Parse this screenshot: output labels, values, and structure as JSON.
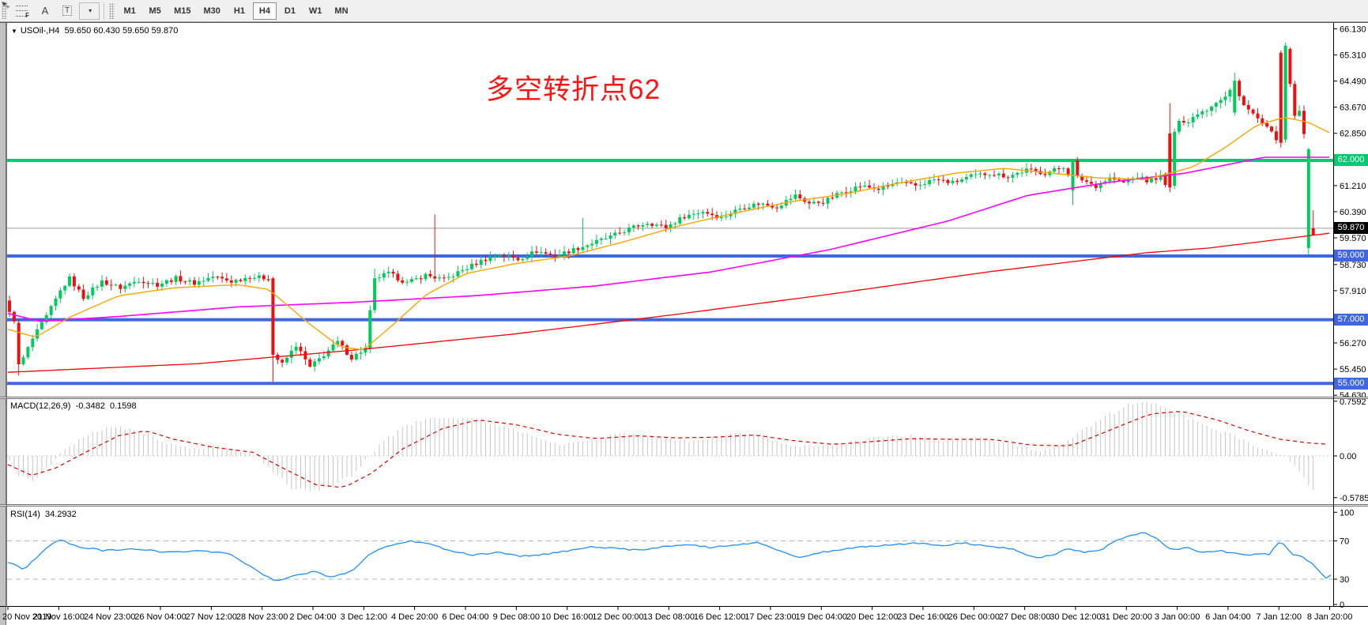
{
  "toolbar": {
    "tools": [
      {
        "name": "fibonacci-tool",
        "glyph": "F"
      },
      {
        "name": "text-tool",
        "glyph": "A"
      },
      {
        "name": "text-label-tool",
        "glyph": "T"
      },
      {
        "name": "arrows-tool",
        "glyph": "▾"
      }
    ],
    "timeframes": [
      "M1",
      "M5",
      "M15",
      "M30",
      "H1",
      "H4",
      "D1",
      "W1",
      "MN"
    ],
    "selected_timeframe": "H4"
  },
  "chart_header": {
    "dropdown_glyph": "▼",
    "symbol": "USOil-,H4",
    "ohlc": "59.650 60.430 59.650 59.870"
  },
  "annotation": {
    "text": "多空转折点62",
    "color": "#FF1414"
  },
  "price_axis": {
    "top_value": 66.29,
    "bottom_value": 54.585,
    "tick_labels": [
      "66.130",
      "65.310",
      "64.490",
      "63.670",
      "62.850",
      "61.210",
      "60.390",
      "59.570",
      "58.730",
      "57.910",
      "56.270",
      "55.450",
      "54.630"
    ],
    "tick_values": [
      66.13,
      65.31,
      64.49,
      63.67,
      62.85,
      61.21,
      60.39,
      59.57,
      58.73,
      57.91,
      56.27,
      55.45,
      54.63
    ],
    "tags": [
      {
        "name": "price-tag-level-62",
        "label": "62.000",
        "value": 62.0,
        "bg": "#00CB72",
        "fg": "#FFFFFF"
      },
      {
        "name": "price-tag-current-bid",
        "label": "59.870",
        "value": 59.87,
        "bg": "#000000",
        "fg": "#FFFFFF"
      },
      {
        "name": "price-tag-level-59",
        "label": "59.000",
        "value": 59.0,
        "bg": "#4066E0",
        "fg": "#FFFFFF"
      },
      {
        "name": "price-tag-level-57",
        "label": "57.000",
        "value": 57.0,
        "bg": "#4066E0",
        "fg": "#FFFFFF"
      },
      {
        "name": "price-tag-level-55",
        "label": "55.000",
        "value": 55.0,
        "bg": "#4066E0",
        "fg": "#FFFFFF"
      }
    ]
  },
  "chart_data": {
    "type": "candlestick",
    "symbol": "USOil",
    "timeframe": "H4",
    "title": "USOil-,H4 59.650 60.430 59.650 59.870",
    "current_ohlc": {
      "open": 59.65,
      "high": 60.43,
      "low": 59.65,
      "close": 59.87
    },
    "colors": {
      "bull": "#00CC5C",
      "bear": "#EC1010",
      "ma_fast": "#FFA500",
      "ma_mid": "#FF00FF",
      "ma_slow": "#FF0000",
      "level_green": "#00CB72",
      "level_blue": "#4066E0",
      "price_line": "#9a9a9a"
    },
    "candle_count": 283,
    "first_open": 57.6,
    "noise": 0.14,
    "close_waypoints": [
      [
        0,
        57.2
      ],
      [
        1,
        57.0
      ],
      [
        3,
        55.8
      ],
      [
        5,
        56.4
      ],
      [
        8,
        57.1
      ],
      [
        11,
        57.9
      ],
      [
        13,
        58.3
      ],
      [
        16,
        57.7
      ],
      [
        20,
        58.2
      ],
      [
        24,
        58.0
      ],
      [
        28,
        58.25
      ],
      [
        32,
        58.1
      ],
      [
        36,
        58.3
      ],
      [
        40,
        58.15
      ],
      [
        44,
        58.35
      ],
      [
        48,
        58.2
      ],
      [
        52,
        58.35
      ],
      [
        56,
        58.3
      ],
      [
        57,
        55.9
      ],
      [
        59,
        55.6
      ],
      [
        62,
        56.2
      ],
      [
        65,
        55.5
      ],
      [
        68,
        55.9
      ],
      [
        71,
        56.3
      ],
      [
        74,
        55.8
      ],
      [
        77,
        56.1
      ],
      [
        78,
        57.3
      ],
      [
        79,
        58.3
      ],
      [
        82,
        58.45
      ],
      [
        86,
        58.15
      ],
      [
        90,
        58.4
      ],
      [
        94,
        58.25
      ],
      [
        98,
        58.55
      ],
      [
        102,
        58.85
      ],
      [
        106,
        59.05
      ],
      [
        110,
        58.9
      ],
      [
        114,
        59.15
      ],
      [
        118,
        59.0
      ],
      [
        122,
        59.2
      ],
      [
        126,
        59.4
      ],
      [
        130,
        59.6
      ],
      [
        134,
        59.85
      ],
      [
        138,
        60.05
      ],
      [
        142,
        59.9
      ],
      [
        146,
        60.25
      ],
      [
        150,
        60.4
      ],
      [
        154,
        60.2
      ],
      [
        158,
        60.5
      ],
      [
        162,
        60.65
      ],
      [
        166,
        60.55
      ],
      [
        170,
        60.9
      ],
      [
        173,
        60.65
      ],
      [
        176,
        60.7
      ],
      [
        180,
        61.0
      ],
      [
        184,
        61.2
      ],
      [
        188,
        61.1
      ],
      [
        192,
        61.3
      ],
      [
        196,
        61.2
      ],
      [
        200,
        61.4
      ],
      [
        204,
        61.3
      ],
      [
        208,
        61.5
      ],
      [
        212,
        61.6
      ],
      [
        216,
        61.5
      ],
      [
        220,
        61.7
      ],
      [
        224,
        61.6
      ],
      [
        228,
        61.8
      ],
      [
        229,
        61.6
      ],
      [
        232,
        61.4
      ],
      [
        235,
        61.2
      ],
      [
        238,
        61.45
      ],
      [
        241,
        61.3
      ],
      [
        244,
        61.5
      ],
      [
        246,
        61.35
      ],
      [
        249,
        61.5
      ],
      [
        250,
        61.2
      ],
      [
        253,
        63.3
      ],
      [
        255,
        63.2
      ],
      [
        257,
        63.5
      ],
      [
        259,
        63.6
      ],
      [
        261,
        63.85
      ],
      [
        263,
        64.0
      ],
      [
        264,
        64.2
      ],
      [
        266,
        64.0
      ],
      [
        268,
        63.6
      ],
      [
        270,
        63.3
      ],
      [
        272,
        63.0
      ],
      [
        274,
        62.7
      ],
      [
        279,
        63.5
      ],
      [
        280,
        62.8
      ],
      [
        282,
        59.87
      ]
    ],
    "special_candles": {
      "2": {
        "o": 56.9,
        "c": 55.6,
        "l": 55.25,
        "h": 57.0
      },
      "57": {
        "o": 58.3,
        "c": 55.9,
        "l": 55.05,
        "h": 58.35
      },
      "78": {
        "o": 56.1,
        "c": 57.3,
        "l": 55.95,
        "h": 57.45
      },
      "79": {
        "o": 57.3,
        "c": 58.3,
        "l": 57.2,
        "h": 58.6
      },
      "92": {
        "h": 60.3
      },
      "124": {
        "h": 60.2
      },
      "230": {
        "o": 61.05,
        "c": 62.0,
        "l": 60.6,
        "h": 62.05
      },
      "251": {
        "o": 62.85,
        "c": 61.15,
        "l": 61.0,
        "h": 63.8
      },
      "252": {
        "o": 61.2,
        "c": 62.9,
        "l": 61.1,
        "h": 63.0
      },
      "265": {
        "o": 63.5,
        "c": 64.5,
        "l": 63.4,
        "h": 64.75
      },
      "275": {
        "o": 65.38,
        "c": 62.55,
        "l": 62.4,
        "h": 65.45
      },
      "276": {
        "o": 62.65,
        "c": 65.6,
        "l": 62.55,
        "h": 65.7
      },
      "277": {
        "o": 65.5,
        "c": 64.4,
        "l": 64.3,
        "h": 65.55
      },
      "278": {
        "o": 64.4,
        "c": 63.4,
        "l": 63.3,
        "h": 64.5
      },
      "281": {
        "o": 59.25,
        "c": 62.35,
        "l": 59.05,
        "h": 62.4
      },
      "282": {
        "o": 59.65,
        "c": 59.87,
        "l": 59.65,
        "h": 60.43,
        "color": "bear"
      }
    },
    "horizontal_levels": [
      {
        "value": 62.0,
        "color": "#00CB72"
      },
      {
        "value": 59.0,
        "color": "#4066E0"
      },
      {
        "value": 57.0,
        "color": "#4066E0"
      },
      {
        "value": 55.0,
        "color": "#4066E0"
      }
    ],
    "current_price_line": 59.87,
    "ma_fast_waypoints": [
      [
        10,
        56.7
      ],
      [
        45,
        56.45
      ],
      [
        90,
        57.1
      ],
      [
        150,
        57.75
      ],
      [
        220,
        58.0
      ],
      [
        300,
        58.1
      ],
      [
        340,
        57.95
      ],
      [
        390,
        56.9
      ],
      [
        430,
        56.15
      ],
      [
        460,
        56.05
      ],
      [
        500,
        56.9
      ],
      [
        540,
        57.8
      ],
      [
        590,
        58.45
      ],
      [
        650,
        58.75
      ],
      [
        720,
        59.0
      ],
      [
        790,
        59.45
      ],
      [
        860,
        59.95
      ],
      [
        930,
        60.35
      ],
      [
        1000,
        60.7
      ],
      [
        1070,
        60.95
      ],
      [
        1140,
        61.3
      ],
      [
        1210,
        61.6
      ],
      [
        1270,
        61.75
      ],
      [
        1330,
        61.6
      ],
      [
        1390,
        61.45
      ],
      [
        1450,
        61.4
      ],
      [
        1510,
        61.8
      ],
      [
        1550,
        62.4
      ],
      [
        1590,
        63.1
      ],
      [
        1625,
        63.35
      ],
      [
        1655,
        63.2
      ],
      [
        1684,
        62.85
      ]
    ],
    "ma_mid_waypoints": [
      [
        10,
        57.2
      ],
      [
        50,
        56.95
      ],
      [
        150,
        57.1
      ],
      [
        300,
        57.4
      ],
      [
        450,
        57.55
      ],
      [
        600,
        57.75
      ],
      [
        750,
        58.05
      ],
      [
        900,
        58.5
      ],
      [
        1050,
        59.2
      ],
      [
        1200,
        60.1
      ],
      [
        1300,
        60.9
      ],
      [
        1400,
        61.3
      ],
      [
        1500,
        61.6
      ],
      [
        1600,
        62.1
      ],
      [
        1684,
        62.1
      ]
    ],
    "ma_slow_waypoints": [
      [
        10,
        55.35
      ],
      [
        250,
        55.62
      ],
      [
        450,
        56.05
      ],
      [
        650,
        56.55
      ],
      [
        850,
        57.15
      ],
      [
        1050,
        57.8
      ],
      [
        1250,
        58.5
      ],
      [
        1450,
        59.1
      ],
      [
        1530,
        59.25
      ],
      [
        1684,
        59.72
      ]
    ]
  },
  "macd": {
    "label": "MACD(12,26,9)",
    "value_main": "-0.3482",
    "value_signal": "0.1598",
    "axis_ticks": [
      {
        "label": "0.7592",
        "value": 0.7592
      },
      {
        "label": "0.00",
        "value": 0
      },
      {
        "label": "-0.5785",
        "value": -0.5785
      }
    ],
    "colors": {
      "histogram": "#c6c6c6",
      "signal": "#E00000"
    },
    "histogram_waypoints": [
      [
        10,
        -0.05
      ],
      [
        25,
        -0.28
      ],
      [
        45,
        -0.35
      ],
      [
        60,
        -0.15
      ],
      [
        80,
        0.08
      ],
      [
        110,
        0.3
      ],
      [
        140,
        0.42
      ],
      [
        170,
        0.38
      ],
      [
        200,
        0.22
      ],
      [
        240,
        0.1
      ],
      [
        280,
        0.13
      ],
      [
        320,
        0.04
      ],
      [
        345,
        -0.2
      ],
      [
        370,
        -0.45
      ],
      [
        395,
        -0.5
      ],
      [
        420,
        -0.4
      ],
      [
        445,
        -0.28
      ],
      [
        465,
        -0.03
      ],
      [
        490,
        0.25
      ],
      [
        520,
        0.45
      ],
      [
        552,
        0.55
      ],
      [
        590,
        0.52
      ],
      [
        630,
        0.44
      ],
      [
        670,
        0.3
      ],
      [
        710,
        0.16
      ],
      [
        750,
        0.22
      ],
      [
        790,
        0.32
      ],
      [
        830,
        0.27
      ],
      [
        870,
        0.2
      ],
      [
        910,
        0.28
      ],
      [
        950,
        0.32
      ],
      [
        990,
        0.17
      ],
      [
        1030,
        0.12
      ],
      [
        1070,
        0.18
      ],
      [
        1110,
        0.25
      ],
      [
        1150,
        0.28
      ],
      [
        1190,
        0.21
      ],
      [
        1230,
        0.27
      ],
      [
        1270,
        0.19
      ],
      [
        1310,
        0.07
      ],
      [
        1340,
        0.13
      ],
      [
        1370,
        0.35
      ],
      [
        1400,
        0.55
      ],
      [
        1430,
        0.72
      ],
      [
        1452,
        0.76
      ],
      [
        1475,
        0.68
      ],
      [
        1505,
        0.52
      ],
      [
        1535,
        0.38
      ],
      [
        1565,
        0.26
      ],
      [
        1595,
        0.1
      ],
      [
        1618,
        0.03
      ],
      [
        1640,
        -0.12
      ],
      [
        1658,
        -0.44
      ],
      [
        1670,
        -0.58
      ],
      [
        1680,
        -0.35
      ]
    ],
    "signal_waypoints": [
      [
        10,
        -0.12
      ],
      [
        40,
        -0.27
      ],
      [
        70,
        -0.17
      ],
      [
        110,
        0.06
      ],
      [
        150,
        0.28
      ],
      [
        185,
        0.35
      ],
      [
        220,
        0.23
      ],
      [
        270,
        0.12
      ],
      [
        320,
        0.05
      ],
      [
        360,
        -0.18
      ],
      [
        400,
        -0.4
      ],
      [
        435,
        -0.44
      ],
      [
        470,
        -0.24
      ],
      [
        510,
        0.1
      ],
      [
        560,
        0.38
      ],
      [
        605,
        0.5
      ],
      [
        655,
        0.43
      ],
      [
        705,
        0.3
      ],
      [
        755,
        0.24
      ],
      [
        805,
        0.28
      ],
      [
        855,
        0.25
      ],
      [
        905,
        0.26
      ],
      [
        955,
        0.29
      ],
      [
        1005,
        0.21
      ],
      [
        1055,
        0.16
      ],
      [
        1105,
        0.2
      ],
      [
        1155,
        0.24
      ],
      [
        1205,
        0.23
      ],
      [
        1255,
        0.23
      ],
      [
        1305,
        0.15
      ],
      [
        1355,
        0.14
      ],
      [
        1405,
        0.36
      ],
      [
        1455,
        0.58
      ],
      [
        1495,
        0.62
      ],
      [
        1540,
        0.5
      ],
      [
        1580,
        0.35
      ],
      [
        1620,
        0.23
      ],
      [
        1655,
        0.18
      ],
      [
        1684,
        0.16
      ]
    ]
  },
  "rsi": {
    "label": "RSI(14)",
    "value": "34.2932",
    "color": "#1E90FF",
    "levels": [
      70,
      30
    ],
    "axis_ticks": [
      {
        "label": "100",
        "value": 100
      },
      {
        "label": "70",
        "value": 70
      },
      {
        "label": "30",
        "value": 30
      },
      {
        "label": "0",
        "value": 0
      }
    ],
    "waypoints": [
      [
        10,
        48
      ],
      [
        30,
        40
      ],
      [
        55,
        60
      ],
      [
        75,
        72
      ],
      [
        95,
        65
      ],
      [
        130,
        60
      ],
      [
        170,
        62
      ],
      [
        210,
        58
      ],
      [
        250,
        60
      ],
      [
        290,
        57
      ],
      [
        330,
        36
      ],
      [
        348,
        28
      ],
      [
        372,
        33
      ],
      [
        398,
        38
      ],
      [
        420,
        32
      ],
      [
        445,
        38
      ],
      [
        465,
        55
      ],
      [
        490,
        65
      ],
      [
        520,
        70
      ],
      [
        545,
        66
      ],
      [
        570,
        60
      ],
      [
        600,
        55
      ],
      [
        630,
        58
      ],
      [
        660,
        54
      ],
      [
        690,
        56
      ],
      [
        720,
        60
      ],
      [
        750,
        64
      ],
      [
        780,
        62
      ],
      [
        810,
        60
      ],
      [
        840,
        64
      ],
      [
        870,
        66
      ],
      [
        900,
        63
      ],
      [
        930,
        66
      ],
      [
        960,
        68
      ],
      [
        990,
        58
      ],
      [
        1012,
        52
      ],
      [
        1040,
        58
      ],
      [
        1070,
        62
      ],
      [
        1100,
        64
      ],
      [
        1130,
        66
      ],
      [
        1160,
        68
      ],
      [
        1190,
        65
      ],
      [
        1220,
        68
      ],
      [
        1250,
        64
      ],
      [
        1280,
        62
      ],
      [
        1310,
        52
      ],
      [
        1332,
        55
      ],
      [
        1352,
        62
      ],
      [
        1372,
        58
      ],
      [
        1392,
        60
      ],
      [
        1412,
        70
      ],
      [
        1432,
        76
      ],
      [
        1447,
        79
      ],
      [
        1462,
        73
      ],
      [
        1482,
        60
      ],
      [
        1502,
        63
      ],
      [
        1522,
        58
      ],
      [
        1542,
        60
      ],
      [
        1562,
        57
      ],
      [
        1578,
        55
      ],
      [
        1592,
        57
      ],
      [
        1606,
        56
      ],
      [
        1620,
        70
      ],
      [
        1634,
        57
      ],
      [
        1648,
        53
      ],
      [
        1660,
        47
      ],
      [
        1670,
        38
      ],
      [
        1678,
        31
      ],
      [
        1684,
        34.3
      ]
    ]
  },
  "time_axis": {
    "labels": [
      "20 Nov 2019",
      "21 Nov 16:00",
      "24 Nov 23:00",
      "26 Nov 04:00",
      "27 Nov 12:00",
      "28 Nov 23:00",
      "2 Dec 04:00",
      "3 Dec 12:00",
      "4 Dec 20:00",
      "6 Dec 04:00",
      "9 Dec 08:00",
      "10 Dec 16:00",
      "12 Dec 00:00",
      "13 Dec 08:00",
      "16 Dec 12:00",
      "17 Dec 23:00",
      "19 Dec 04:00",
      "20 Dec 12:00",
      "23 Dec 16:00",
      "26 Dec 00:00",
      "27 Dec 08:00",
      "30 Dec 12:00",
      "31 Dec 20:00",
      "3 Jan 00:00",
      "6 Jan 04:00",
      "7 Jan 12:00",
      "8 Jan 20:00"
    ]
  }
}
